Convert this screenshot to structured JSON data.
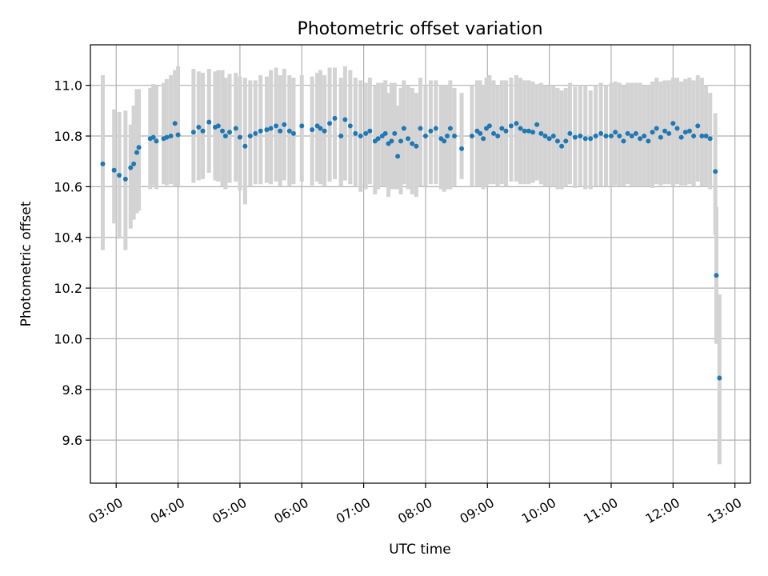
{
  "chart_data": {
    "type": "scatter",
    "title": "Photometric offset variation",
    "xlabel": "UTC time",
    "ylabel": "Photometric offset",
    "xlim": [
      "02:35",
      "13:15"
    ],
    "ylim": [
      9.43,
      11.16
    ],
    "x_ticks": [
      "03:00",
      "04:00",
      "05:00",
      "06:00",
      "07:00",
      "08:00",
      "09:00",
      "10:00",
      "11:00",
      "12:00",
      "13:00"
    ],
    "y_ticks": [
      9.6,
      9.8,
      10.0,
      10.2,
      10.4,
      10.6,
      10.8,
      11.0
    ],
    "grid": true,
    "marker_color": "#1f77b4",
    "errorbar_color": "#d3d3d3",
    "series": [
      {
        "x": [
          "02:47",
          "02:58",
          "03:03",
          "03:09",
          "03:14",
          "03:17",
          "03:20",
          "03:22",
          "03:33",
          "03:36",
          "03:39",
          "03:46",
          "03:49",
          "03:53",
          "03:57",
          "04:00",
          "04:15",
          "04:20",
          "04:24",
          "04:30",
          "04:36",
          "04:39",
          "04:43",
          "04:46",
          "04:50",
          "04:56",
          "05:00",
          "05:05",
          "05:10",
          "05:15",
          "05:20",
          "05:26",
          "05:30",
          "05:35",
          "05:39",
          "05:43",
          "05:48",
          "05:52",
          "06:00",
          "06:10",
          "06:15",
          "06:18",
          "06:22",
          "06:27",
          "06:32",
          "06:38",
          "06:42",
          "06:47",
          "06:52",
          "06:57",
          "07:02",
          "07:06",
          "07:11",
          "07:14",
          "07:18",
          "07:21",
          "07:24",
          "07:27",
          "07:30",
          "07:33",
          "07:36",
          "07:39",
          "07:43",
          "07:47",
          "07:51",
          "07:55",
          "08:00",
          "08:05",
          "08:10",
          "08:15",
          "08:18",
          "08:21",
          "08:24",
          "08:28",
          "08:35",
          "08:45",
          "08:50",
          "08:53",
          "08:56",
          "08:59",
          "09:02",
          "09:06",
          "09:10",
          "09:14",
          "09:18",
          "09:23",
          "09:28",
          "09:32",
          "09:36",
          "09:40",
          "09:44",
          "09:48",
          "09:52",
          "09:56",
          "10:00",
          "10:04",
          "10:08",
          "10:12",
          "10:16",
          "10:20",
          "10:25",
          "10:30",
          "10:35",
          "10:40",
          "10:45",
          "10:50",
          "10:55",
          "11:00",
          "11:04",
          "11:08",
          "11:12",
          "11:16",
          "11:20",
          "11:24",
          "11:28",
          "11:32",
          "11:36",
          "11:40",
          "11:44",
          "11:48",
          "11:52",
          "11:56",
          "12:00",
          "12:04",
          "12:08",
          "12:12",
          "12:16",
          "12:20",
          "12:24",
          "12:28",
          "12:32",
          "12:36",
          "12:41",
          "12:42",
          "12:45"
        ],
        "y": [
          10.69,
          10.665,
          10.645,
          10.63,
          10.675,
          10.69,
          10.735,
          10.755,
          10.79,
          10.795,
          10.78,
          10.79,
          10.795,
          10.8,
          10.85,
          10.805,
          10.815,
          10.835,
          10.82,
          10.855,
          10.835,
          10.84,
          10.82,
          10.8,
          10.815,
          10.83,
          10.795,
          10.76,
          10.8,
          10.81,
          10.82,
          10.825,
          10.83,
          10.84,
          10.82,
          10.845,
          10.82,
          10.81,
          10.84,
          10.825,
          10.84,
          10.83,
          10.82,
          10.85,
          10.87,
          10.8,
          10.865,
          10.84,
          10.81,
          10.8,
          10.81,
          10.82,
          10.78,
          10.79,
          10.8,
          10.81,
          10.77,
          10.78,
          10.81,
          10.72,
          10.78,
          10.83,
          10.79,
          10.77,
          10.76,
          10.83,
          10.8,
          10.82,
          10.83,
          10.79,
          10.78,
          10.8,
          10.83,
          10.8,
          10.75,
          10.8,
          10.82,
          10.81,
          10.79,
          10.83,
          10.84,
          10.81,
          10.8,
          10.83,
          10.82,
          10.84,
          10.85,
          10.83,
          10.82,
          10.82,
          10.815,
          10.845,
          10.81,
          10.8,
          10.79,
          10.8,
          10.78,
          10.76,
          10.78,
          10.81,
          10.795,
          10.8,
          10.79,
          10.79,
          10.8,
          10.81,
          10.8,
          10.8,
          10.815,
          10.8,
          10.78,
          10.81,
          10.8,
          10.81,
          10.79,
          10.8,
          10.78,
          10.815,
          10.83,
          10.795,
          10.82,
          10.81,
          10.85,
          10.83,
          10.795,
          10.815,
          10.82,
          10.8,
          10.84,
          10.8,
          10.8,
          10.79,
          10.66,
          10.25,
          9.845
        ],
        "yerr_lo": [
          0.34,
          0.21,
          0.25,
          0.28,
          0.24,
          0.22,
          0.24,
          0.25,
          0.2,
          0.19,
          0.19,
          0.18,
          0.19,
          0.19,
          0.25,
          0.2,
          0.2,
          0.21,
          0.19,
          0.2,
          0.21,
          0.22,
          0.22,
          0.21,
          0.2,
          0.21,
          0.21,
          0.23,
          0.2,
          0.2,
          0.21,
          0.21,
          0.22,
          0.22,
          0.22,
          0.22,
          0.22,
          0.2,
          0.22,
          0.22,
          0.22,
          0.22,
          0.22,
          0.23,
          0.24,
          0.2,
          0.24,
          0.23,
          0.21,
          0.22,
          0.22,
          0.21,
          0.21,
          0.2,
          0.2,
          0.21,
          0.21,
          0.19,
          0.22,
          0.13,
          0.21,
          0.22,
          0.2,
          0.2,
          0.2,
          0.23,
          0.2,
          0.21,
          0.22,
          0.2,
          0.2,
          0.21,
          0.24,
          0.2,
          0.12,
          0.2,
          0.22,
          0.21,
          0.2,
          0.23,
          0.23,
          0.2,
          0.2,
          0.22,
          0.22,
          0.22,
          0.23,
          0.22,
          0.21,
          0.21,
          0.2,
          0.22,
          0.2,
          0.2,
          0.19,
          0.2,
          0.19,
          0.17,
          0.18,
          0.2,
          0.2,
          0.2,
          0.2,
          0.2,
          0.2,
          0.21,
          0.2,
          0.2,
          0.21,
          0.2,
          0.18,
          0.2,
          0.2,
          0.21,
          0.19,
          0.2,
          0.18,
          0.22,
          0.22,
          0.19,
          0.21,
          0.2,
          0.25,
          0.22,
          0.19,
          0.21,
          0.21,
          0.2,
          0.22,
          0.2,
          0.2,
          0.2,
          0.25,
          0.27,
          0.34
        ],
        "yerr_hi": [
          0.35,
          0.24,
          0.25,
          0.27,
          0.17,
          0.23,
          0.25,
          0.23,
          0.2,
          0.21,
          0.22,
          0.22,
          0.23,
          0.24,
          0.21,
          0.27,
          0.25,
          0.22,
          0.23,
          0.21,
          0.22,
          0.22,
          0.24,
          0.23,
          0.23,
          0.22,
          0.24,
          0.27,
          0.22,
          0.21,
          0.22,
          0.21,
          0.23,
          0.23,
          0.22,
          0.22,
          0.22,
          0.22,
          0.2,
          0.21,
          0.21,
          0.23,
          0.22,
          0.22,
          0.2,
          0.23,
          0.21,
          0.22,
          0.22,
          0.22,
          0.2,
          0.21,
          0.22,
          0.22,
          0.21,
          0.21,
          0.2,
          0.23,
          0.2,
          0.2,
          0.21,
          0.19,
          0.21,
          0.22,
          0.21,
          0.2,
          0.2,
          0.2,
          0.19,
          0.21,
          0.22,
          0.2,
          0.19,
          0.19,
          0.22,
          0.2,
          0.2,
          0.21,
          0.21,
          0.2,
          0.2,
          0.21,
          0.2,
          0.19,
          0.2,
          0.19,
          0.19,
          0.2,
          0.2,
          0.2,
          0.2,
          0.16,
          0.2,
          0.2,
          0.21,
          0.2,
          0.21,
          0.22,
          0.21,
          0.2,
          0.2,
          0.2,
          0.21,
          0.19,
          0.2,
          0.2,
          0.2,
          0.21,
          0.2,
          0.21,
          0.22,
          0.2,
          0.21,
          0.2,
          0.22,
          0.2,
          0.22,
          0.2,
          0.2,
          0.22,
          0.2,
          0.21,
          0.18,
          0.2,
          0.22,
          0.21,
          0.21,
          0.22,
          0.2,
          0.23,
          0.2,
          0.18,
          0.23,
          0.27,
          0.33
        ]
      }
    ]
  }
}
